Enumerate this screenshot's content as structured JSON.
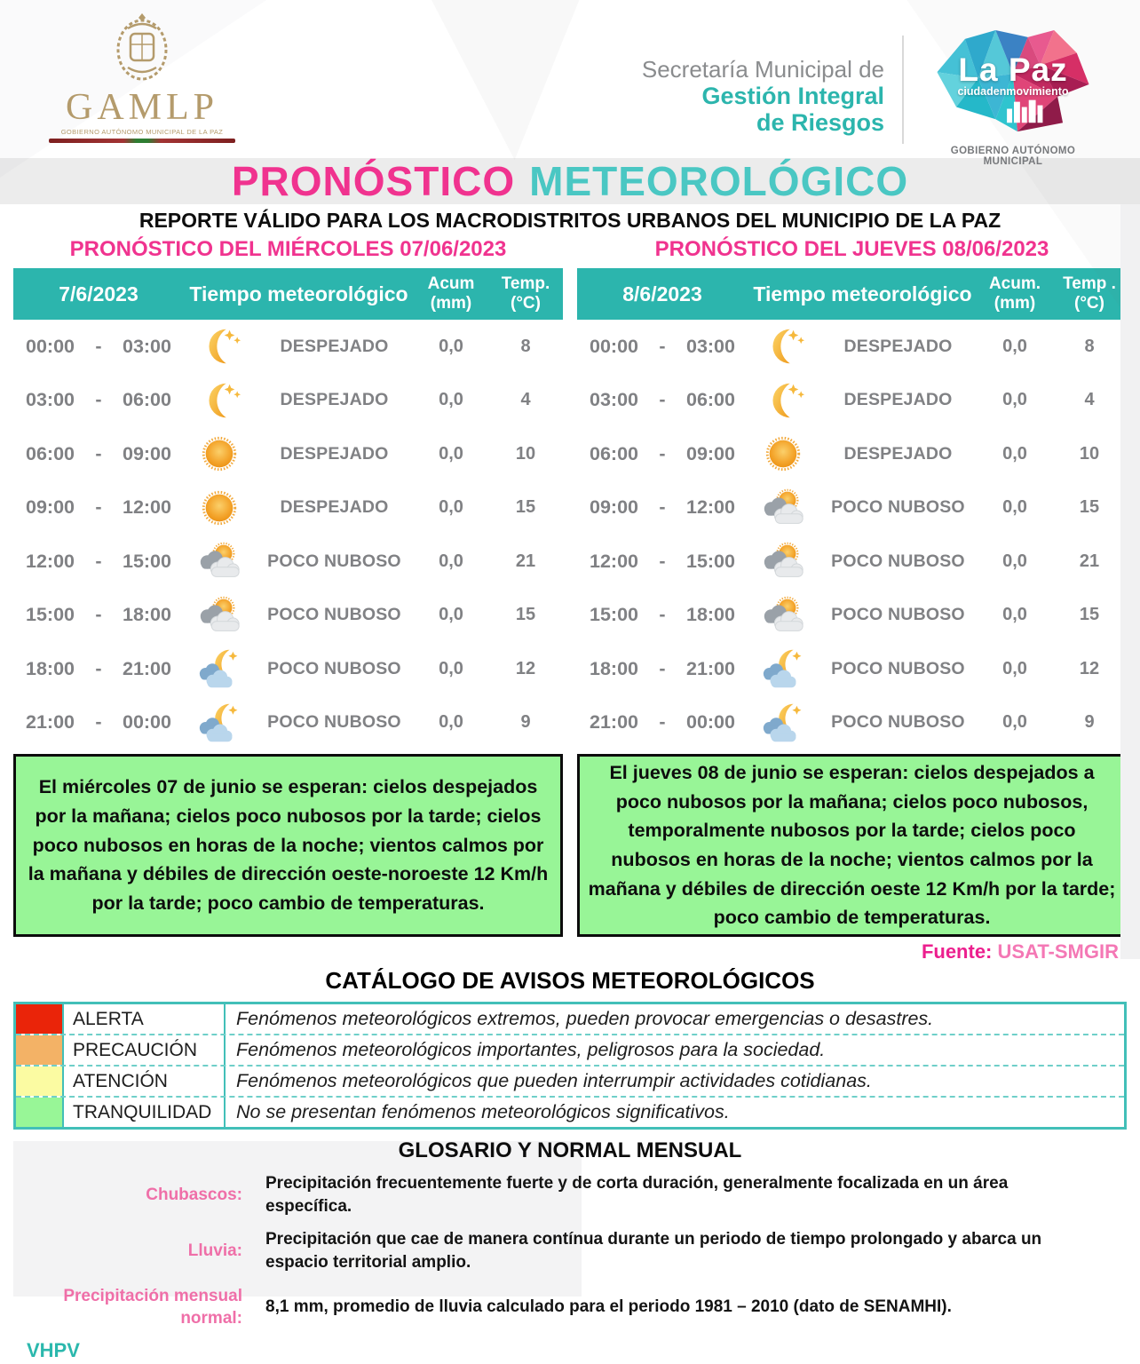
{
  "header": {
    "gamlp": {
      "acronym": "GAMLP",
      "caption": "GOBIERNO AUTÓNOMO MUNICIPAL DE LA PAZ"
    },
    "secretaria": {
      "line1": "Secretaría Municipal de",
      "line2": "Gestión Integral",
      "line3": "de Riesgos"
    },
    "lapaz": {
      "title": "La Paz",
      "subtitle": "ciudadenmovimiento",
      "caption": "GOBIERNO AUTÓNOMO MUNICIPAL"
    }
  },
  "title": {
    "part1": "PRONÓSTICO",
    "part2": "METEOROLÓGICO"
  },
  "subtitle": "REPORTE VÁLIDO PARA LOS MACRODISTRITOS URBANOS DEL MUNICIPIO DE LA PAZ",
  "time_separator": "-",
  "forecast_tables": [
    {
      "section_title": "PRONÓSTICO DEL MIÉRCOLES 07/06/2023",
      "columns": {
        "date": "7/6/2023",
        "weather": "Tiempo meteorológico",
        "acum": "Acum",
        "acum_unit": "(mm)",
        "temp": "Temp.",
        "temp_unit": "(°C)"
      },
      "rows": [
        {
          "start": "00:00",
          "end": "03:00",
          "icon": "moon-stars",
          "condition": "DESPEJADO",
          "acum": "0,0",
          "temp": "8"
        },
        {
          "start": "03:00",
          "end": "06:00",
          "icon": "moon-stars",
          "condition": "DESPEJADO",
          "acum": "0,0",
          "temp": "4"
        },
        {
          "start": "06:00",
          "end": "09:00",
          "icon": "sun",
          "condition": "DESPEJADO",
          "acum": "0,0",
          "temp": "10"
        },
        {
          "start": "09:00",
          "end": "12:00",
          "icon": "sun",
          "condition": "DESPEJADO",
          "acum": "0,0",
          "temp": "15"
        },
        {
          "start": "12:00",
          "end": "15:00",
          "icon": "sun-cloud",
          "condition": "POCO NUBOSO",
          "acum": "0,0",
          "temp": "21"
        },
        {
          "start": "15:00",
          "end": "18:00",
          "icon": "sun-cloud",
          "condition": "POCO NUBOSO",
          "acum": "0,0",
          "temp": "15"
        },
        {
          "start": "18:00",
          "end": "21:00",
          "icon": "moon-cloud",
          "condition": "POCO NUBOSO",
          "acum": "0,0",
          "temp": "12"
        },
        {
          "start": "21:00",
          "end": "00:00",
          "icon": "moon-cloud",
          "condition": "POCO NUBOSO",
          "acum": "0,0",
          "temp": "9"
        }
      ],
      "summary": "El miércoles 07 de junio se esperan: cielos despejados por la mañana; cielos poco nubosos por la tarde; cielos poco nubosos en horas de la noche; vientos calmos por la mañana y débiles de dirección oeste-noroeste 12 Km/h por la tarde; poco cambio de temperaturas."
    },
    {
      "section_title": "PRONÓSTICO DEL JUEVES 08/06/2023",
      "columns": {
        "date": "8/6/2023",
        "weather": "Tiempo meteorológico",
        "acum": "Acum.",
        "acum_unit": "(mm)",
        "temp": "Temp .",
        "temp_unit": "(°C)"
      },
      "rows": [
        {
          "start": "00:00",
          "end": "03:00",
          "icon": "moon-stars",
          "condition": "DESPEJADO",
          "acum": "0,0",
          "temp": "8"
        },
        {
          "start": "03:00",
          "end": "06:00",
          "icon": "moon-stars",
          "condition": "DESPEJADO",
          "acum": "0,0",
          "temp": "4"
        },
        {
          "start": "06:00",
          "end": "09:00",
          "icon": "sun",
          "condition": "DESPEJADO",
          "acum": "0,0",
          "temp": "10"
        },
        {
          "start": "09:00",
          "end": "12:00",
          "icon": "sun-cloud",
          "condition": "POCO NUBOSO",
          "acum": "0,0",
          "temp": "15"
        },
        {
          "start": "12:00",
          "end": "15:00",
          "icon": "sun-cloud",
          "condition": "POCO NUBOSO",
          "acum": "0,0",
          "temp": "21"
        },
        {
          "start": "15:00",
          "end": "18:00",
          "icon": "sun-cloud",
          "condition": "POCO NUBOSO",
          "acum": "0,0",
          "temp": "15"
        },
        {
          "start": "18:00",
          "end": "21:00",
          "icon": "moon-cloud",
          "condition": "POCO NUBOSO",
          "acum": "0,0",
          "temp": "12"
        },
        {
          "start": "21:00",
          "end": "00:00",
          "icon": "moon-cloud",
          "condition": "POCO NUBOSO",
          "acum": "0,0",
          "temp": "9"
        }
      ],
      "summary": "El jueves 08 de junio se esperan: cielos despejados a poco nubosos por la mañana; cielos poco nubosos, temporalmente nubosos por la tarde; cielos poco nubosos en horas de la noche; vientos calmos por la mañana y débiles de dirección oeste 12 Km/h por la tarde; poco cambio de temperaturas."
    }
  ],
  "source": {
    "label": "Fuente:",
    "value": "USAT-SMGIR"
  },
  "catalog": {
    "title": "CATÁLOGO DE AVISOS METEOROLÓGICOS",
    "levels": [
      {
        "name": "ALERTA",
        "color": "#ea2409",
        "description": "Fenómenos meteorológicos extremos, pueden provocar emergencias o desastres."
      },
      {
        "name": "PRECAUCIÓN",
        "color": "#f3b266",
        "description": "Fenómenos meteorológicos importantes, peligrosos para la sociedad."
      },
      {
        "name": "ATENCIÓN",
        "color": "#fbfba2",
        "description": "Fenómenos meteorológicos que pueden interrumpir actividades cotidianas."
      },
      {
        "name": "TRANQUILIDAD",
        "color": "#98f697",
        "description": "No se presentan fenómenos meteorológicos significativos."
      }
    ]
  },
  "glossary": {
    "title": "GLOSARIO Y NORMAL MENSUAL",
    "entries": [
      {
        "term": "Chubascos:",
        "definition": "Precipitación frecuentemente fuerte y de corta duración, generalmente focalizada en un área específica."
      },
      {
        "term": "Lluvia:",
        "definition": "Precipitación que cae de manera contínua durante un periodo de tiempo prolongado y abarca un espacio territorial amplio."
      },
      {
        "term": "Precipitación mensual normal:",
        "definition": "8,1 mm, promedio de lluvia calculado para el periodo 1981 – 2010 (dato de SENAMHI)."
      }
    ]
  },
  "footer": {
    "initials": "VHPV"
  },
  "colors": {
    "teal_header": "#2cb5ad",
    "pink_title": "#f0338f",
    "teal_title": "#4ac7c3",
    "summary_green": "#98f597",
    "source_pink": "#ec1f8e"
  }
}
